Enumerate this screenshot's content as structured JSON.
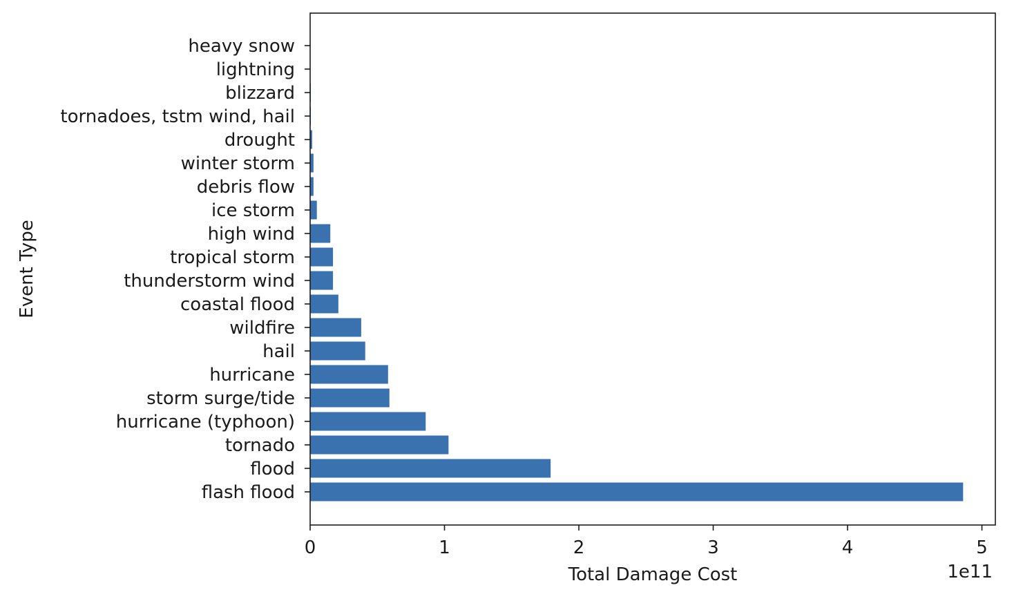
{
  "chart_data": {
    "type": "bar",
    "orientation": "horizontal",
    "title": "",
    "xlabel": "Total Damage Cost",
    "ylabel": "Event Type",
    "x_offset_label": "1e11",
    "xlim": [
      0,
      5.1
    ],
    "x_scale_multiplier": 100000000000.0,
    "xticks": [
      0,
      1,
      2,
      3,
      4,
      5
    ],
    "xtick_labels": [
      "0",
      "1",
      "2",
      "3",
      "4",
      "5"
    ],
    "grid": false,
    "bar_color": "#3a72b0",
    "categories": [
      "flash flood",
      "flood",
      "tornado",
      "hurricane (typhoon)",
      "storm surge/tide",
      "hurricane",
      "hail",
      "wildfire",
      "coastal flood",
      "thunderstorm wind",
      "tropical storm",
      "high wind",
      "ice storm",
      "debris flow",
      "winter storm",
      "drought",
      "tornadoes, tstm wind, hail",
      "blizzard",
      "lightning",
      "heavy snow"
    ],
    "values": [
      4.86,
      1.79,
      1.03,
      0.86,
      0.59,
      0.58,
      0.41,
      0.38,
      0.21,
      0.17,
      0.17,
      0.15,
      0.05,
      0.025,
      0.025,
      0.015,
      0.005,
      0.005,
      0.002,
      0.002
    ]
  }
}
